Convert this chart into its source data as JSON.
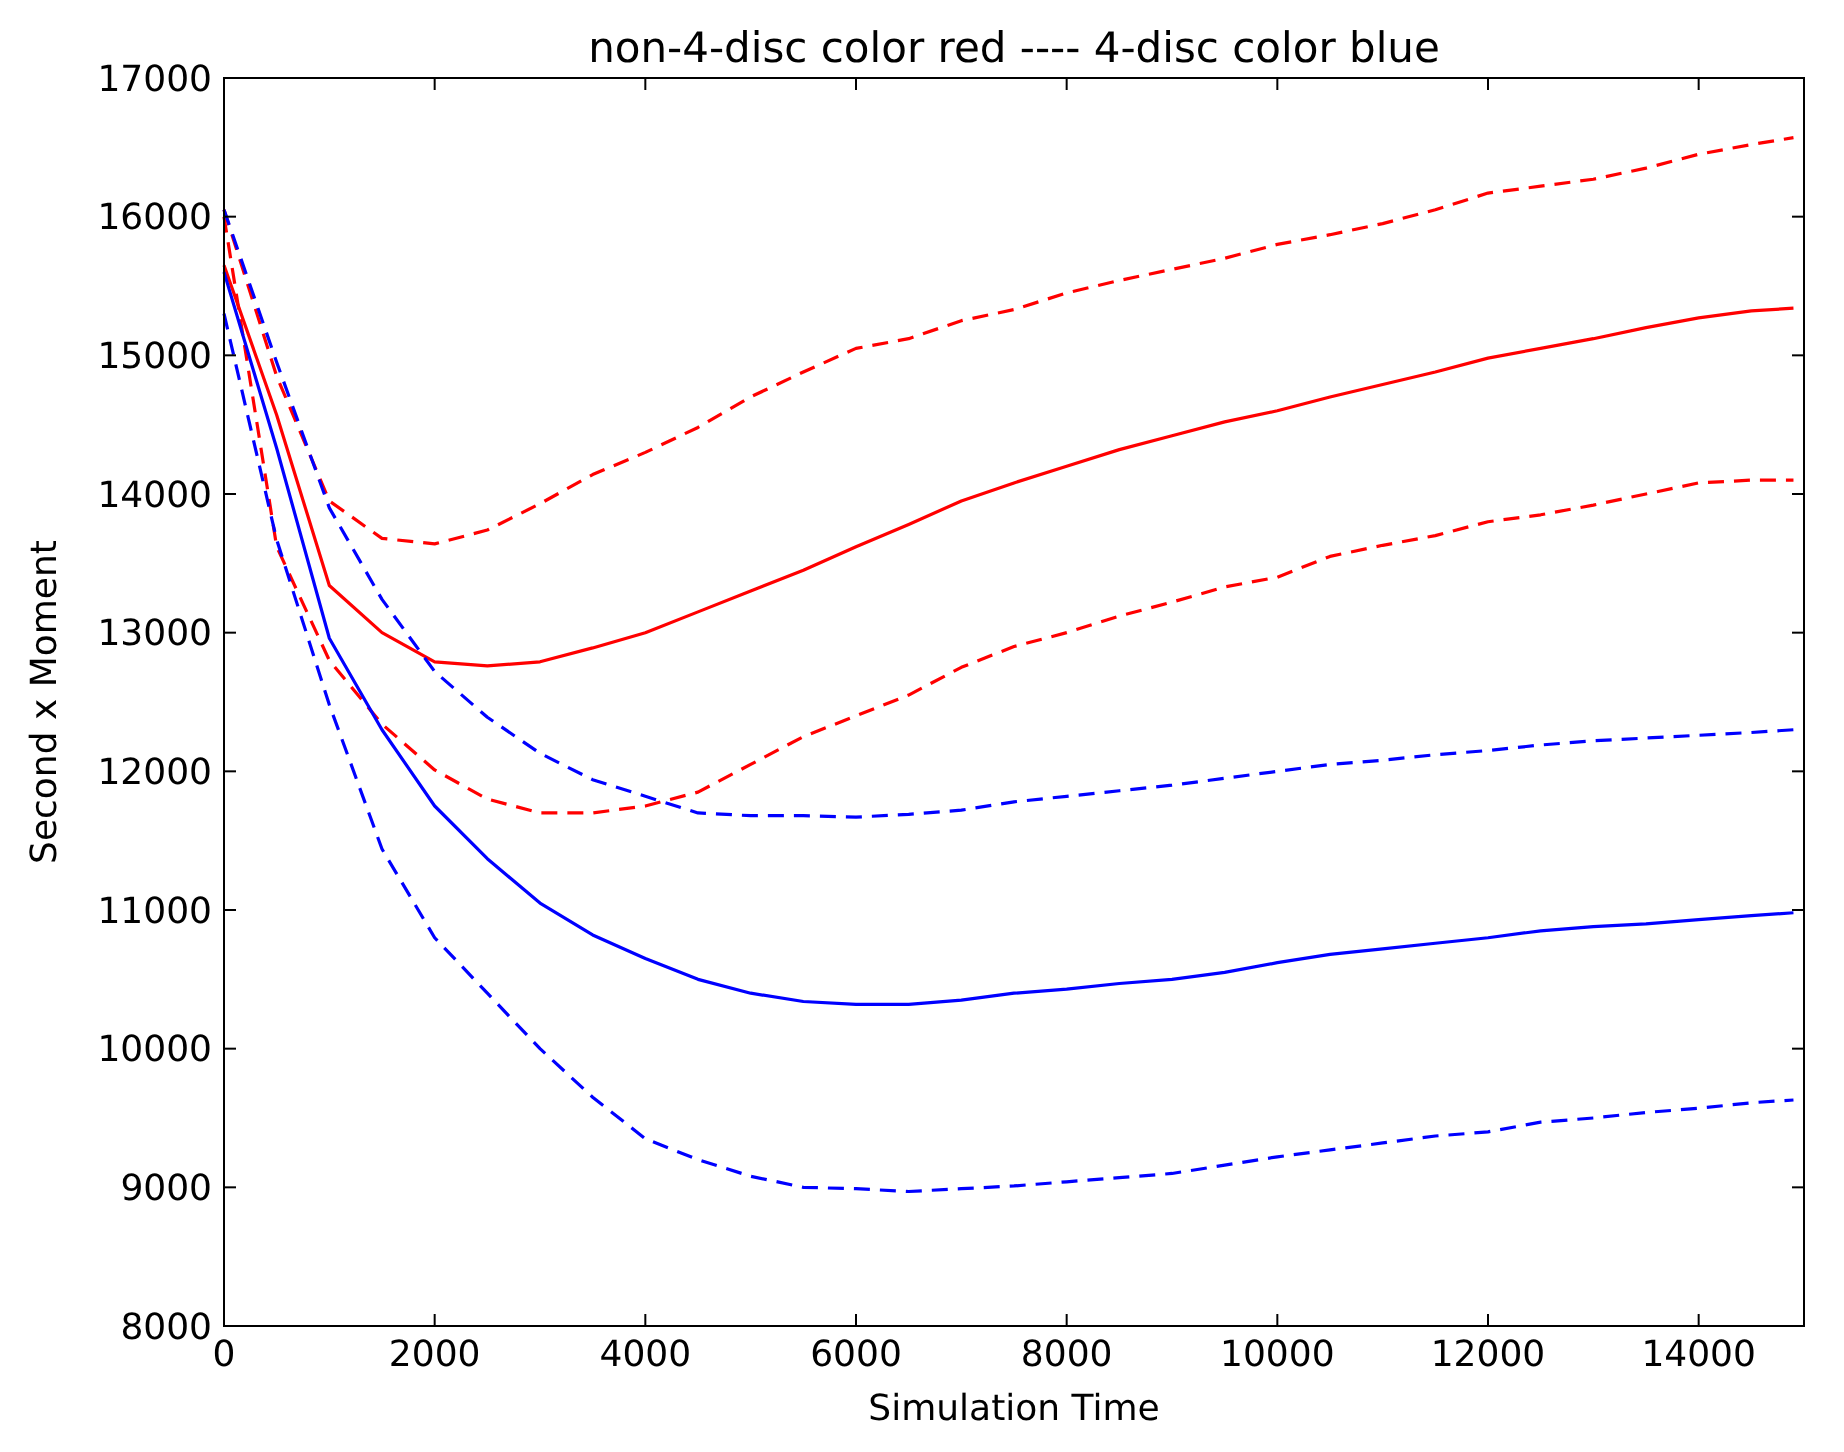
{
  "chart_data": {
    "type": "line",
    "title": "non-4-disc color red ---- 4-disc color blue",
    "xlabel": "Simulation Time",
    "ylabel": "Second x Moment",
    "x": [
      0,
      500,
      1000,
      1500,
      2000,
      2500,
      3000,
      3500,
      4000,
      4500,
      5000,
      5500,
      6000,
      6500,
      7000,
      7500,
      8000,
      8500,
      9000,
      9500,
      10000,
      10500,
      11000,
      11500,
      12000,
      12500,
      13000,
      13500,
      14000,
      14500,
      14900
    ],
    "xlim": [
      0,
      15000
    ],
    "xticks": [
      0,
      2000,
      4000,
      6000,
      8000,
      10000,
      12000,
      14000
    ],
    "ylim": [
      8000,
      17000
    ],
    "yticks": [
      8000,
      9000,
      10000,
      11000,
      12000,
      13000,
      14000,
      15000,
      16000,
      17000
    ],
    "series": [
      {
        "color": "#ff0000",
        "line_style": "solid",
        "values": [
          15650,
          14570,
          13340,
          13000,
          12790,
          12760,
          12790,
          12890,
          13000,
          13150,
          13300,
          13450,
          13620,
          13780,
          13950,
          14080,
          14200,
          14320,
          14420,
          14520,
          14600,
          14700,
          14790,
          14880,
          14980,
          15050,
          15120,
          15200,
          15270,
          15320,
          15340
        ]
      },
      {
        "color": "#ff0000",
        "line_style": "dashed",
        "values": [
          16050,
          14850,
          13950,
          13680,
          13640,
          13740,
          13930,
          14140,
          14300,
          14480,
          14700,
          14880,
          15050,
          15120,
          15250,
          15330,
          15450,
          15540,
          15620,
          15700,
          15800,
          15870,
          15950,
          16050,
          16170,
          16220,
          16270,
          16350,
          16450,
          16520,
          16570
        ]
      },
      {
        "color": "#ff0000",
        "line_style": "dashed",
        "values": [
          16000,
          13620,
          12800,
          12340,
          12010,
          11800,
          11700,
          11700,
          11750,
          11850,
          12050,
          12250,
          12400,
          12550,
          12750,
          12900,
          13000,
          13120,
          13220,
          13330,
          13400,
          13550,
          13630,
          13700,
          13800,
          13850,
          13920,
          14000,
          14080,
          14100,
          14100
        ]
      },
      {
        "color": "#0000ff",
        "line_style": "solid",
        "values": [
          15600,
          14330,
          12960,
          12300,
          11750,
          11370,
          11050,
          10820,
          10650,
          10500,
          10400,
          10340,
          10320,
          10320,
          10350,
          10400,
          10430,
          10470,
          10500,
          10550,
          10620,
          10680,
          10720,
          10760,
          10800,
          10850,
          10880,
          10900,
          10930,
          10960,
          10980
        ]
      },
      {
        "color": "#0000ff",
        "line_style": "dashed",
        "values": [
          16050,
          14950,
          13900,
          13240,
          12720,
          12390,
          12130,
          11940,
          11820,
          11700,
          11680,
          11680,
          11670,
          11690,
          11720,
          11780,
          11820,
          11860,
          11900,
          11950,
          12000,
          12050,
          12080,
          12120,
          12150,
          12190,
          12220,
          12240,
          12260,
          12280,
          12300
        ]
      },
      {
        "color": "#0000ff",
        "line_style": "dashed",
        "values": [
          15300,
          13670,
          12480,
          11440,
          10800,
          10400,
          10000,
          9650,
          9350,
          9200,
          9080,
          9000,
          8990,
          8970,
          8990,
          9010,
          9040,
          9070,
          9100,
          9160,
          9220,
          9270,
          9320,
          9370,
          9400,
          9470,
          9500,
          9540,
          9570,
          9610,
          9630
        ]
      }
    ]
  }
}
